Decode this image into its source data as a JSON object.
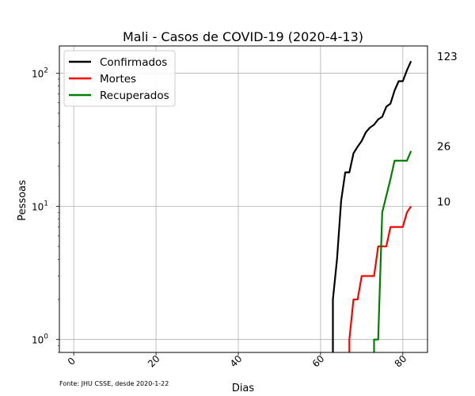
{
  "chart_data": {
    "type": "line",
    "title": "Mali - Casos de COVID-19 (2020-4-13)",
    "xlabel": "Dias",
    "ylabel": "Pessoas",
    "yscale": "log",
    "xlim": [
      -3.5,
      86
    ],
    "ylim": [
      0.8,
      160
    ],
    "grid": true,
    "legend_position": "top-left",
    "x_ticks": [
      0,
      20,
      40,
      60,
      80
    ],
    "y_ticks": [
      {
        "value": 1,
        "label": "10",
        "exp": "0"
      },
      {
        "value": 10,
        "label": "10",
        "exp": "1"
      },
      {
        "value": 100,
        "label": "10",
        "exp": "2"
      }
    ],
    "source": "Fonte: JHU CSSE, desde 2020-1-22",
    "series": [
      {
        "name": "Confirmados",
        "color": "#000000",
        "end_label": "123",
        "points": [
          [
            63,
            0.8
          ],
          [
            63,
            2
          ],
          [
            64,
            4
          ],
          [
            65,
            11
          ],
          [
            66,
            18
          ],
          [
            67,
            18
          ],
          [
            68,
            25
          ],
          [
            69,
            28
          ],
          [
            70,
            31
          ],
          [
            71,
            36
          ],
          [
            72,
            39
          ],
          [
            73,
            41
          ],
          [
            74,
            45
          ],
          [
            75,
            47
          ],
          [
            76,
            56
          ],
          [
            77,
            59
          ],
          [
            78,
            74
          ],
          [
            79,
            87
          ],
          [
            80,
            87
          ],
          [
            81,
            105
          ],
          [
            82,
            123
          ]
        ]
      },
      {
        "name": "Mortes",
        "color": "#ff0000",
        "end_label": "10",
        "points": [
          [
            67,
            0.8
          ],
          [
            67,
            1
          ],
          [
            68,
            2
          ],
          [
            69,
            2
          ],
          [
            70,
            3
          ],
          [
            71,
            3
          ],
          [
            72,
            3
          ],
          [
            73,
            3
          ],
          [
            74,
            5
          ],
          [
            75,
            5
          ],
          [
            76,
            5
          ],
          [
            77,
            7
          ],
          [
            78,
            7
          ],
          [
            79,
            7
          ],
          [
            80,
            7
          ],
          [
            81,
            9
          ],
          [
            82,
            10
          ]
        ]
      },
      {
        "name": "Recuperados",
        "color": "#008000",
        "end_label": "26",
        "points": [
          [
            73,
            0.8
          ],
          [
            73,
            1
          ],
          [
            74,
            1
          ],
          [
            75,
            9
          ],
          [
            76,
            12
          ],
          [
            77,
            16
          ],
          [
            78,
            22
          ],
          [
            79,
            22
          ],
          [
            80,
            22
          ],
          [
            81,
            22
          ],
          [
            82,
            26
          ]
        ]
      }
    ]
  }
}
